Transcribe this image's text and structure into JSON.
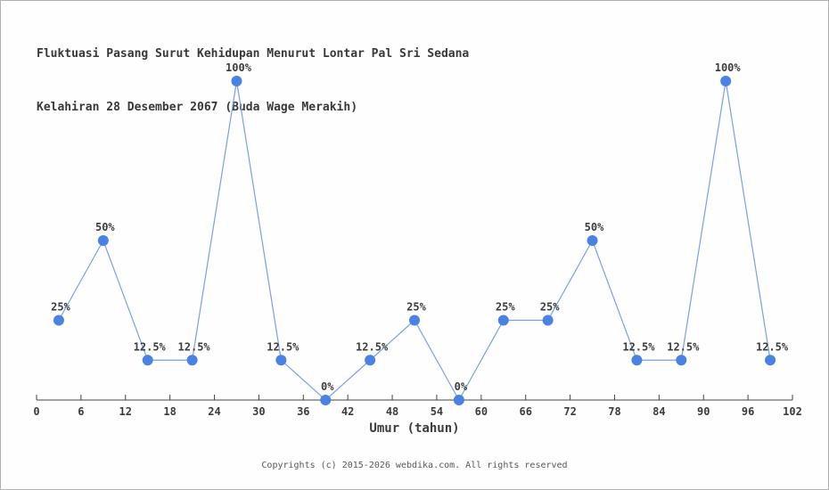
{
  "frame": {
    "background": "#fefefe",
    "border_color": "#b0b0b0"
  },
  "chart_data": {
    "type": "line",
    "title": "Fluktuasi Pasang Surut Kehidupan Menurut Lontar Pal Sri Sedana",
    "subtitle": "Kelahiran 28 Desember 2067 (Buda Wage Merakih)",
    "xlabel": "Umur (tahun)",
    "ylabel": "",
    "x": [
      3,
      9,
      15,
      21,
      27,
      33,
      39,
      45,
      51,
      57,
      63,
      69,
      75,
      81,
      87,
      93,
      99
    ],
    "values": [
      25,
      50,
      12.5,
      12.5,
      100,
      12.5,
      0,
      12.5,
      25,
      0,
      25,
      25,
      50,
      12.5,
      12.5,
      100,
      12.5
    ],
    "point_labels": [
      "25%",
      "50%",
      "12.5%",
      "12.5%",
      "100%",
      "12.5%",
      "0%",
      "12.5%",
      "25%",
      "0%",
      "25%",
      "25%",
      "50%",
      "12.5%",
      "12.5%",
      "100%",
      "12.5%"
    ],
    "x_ticks": [
      0,
      6,
      12,
      18,
      24,
      30,
      36,
      42,
      48,
      54,
      60,
      66,
      72,
      78,
      84,
      90,
      96,
      102
    ],
    "xlim": [
      0,
      102
    ],
    "ylim": [
      0,
      100
    ],
    "grid": false,
    "legend": null,
    "line_color": "#78a0e8",
    "marker_color": "#4a82e4",
    "axis_color": "#444444",
    "text_color": "#3c3c3c"
  },
  "footer": {
    "copyright": "Copyrights (c) 2015-2026 webdika.com. All rights reserved"
  }
}
